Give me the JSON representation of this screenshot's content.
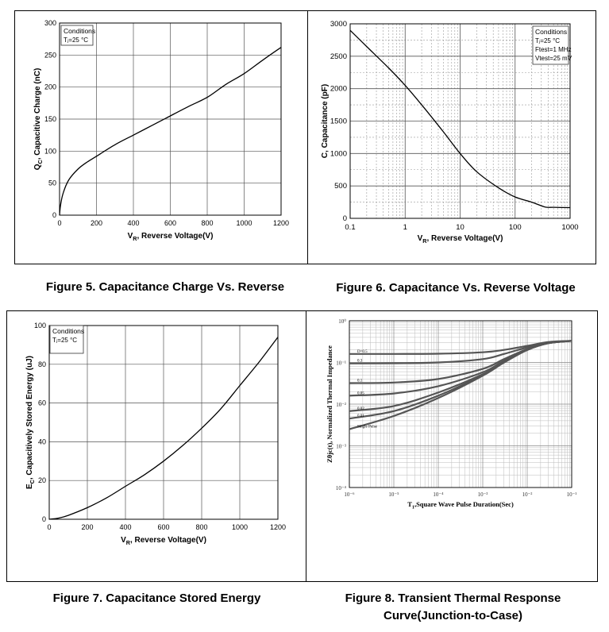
{
  "figures": {
    "fig5": {
      "caption": "Figure 5. Capacitance Charge Vs. Reverse",
      "conditions_title": "Conditions",
      "conditions_lines": [
        "Tⱼ=25 °C"
      ]
    },
    "fig6": {
      "caption": "Figure 6. Capacitance Vs. Reverse Voltage",
      "conditions_title": "Conditions",
      "conditions_lines": [
        "Tⱼ=25 °C",
        "Ftest=1 MHz",
        "Vtest=25 mV"
      ]
    },
    "fig7": {
      "caption": "Figure 7. Capacitance Stored Energy",
      "conditions_title": "Conditions",
      "conditions_lines": [
        "Tⱼ=25 °C"
      ]
    },
    "fig8": {
      "caption_line1": "Figure 8. Transient Thermal Response",
      "caption_line2": "Curve(Junction-to-Case)"
    }
  },
  "chart_data": [
    {
      "type": "line",
      "xlabel": "VR, Reverse Voltage(V)",
      "ylabel": "QC, Capacitive Charge (nC)",
      "xlim": [
        0,
        1200
      ],
      "ylim": [
        0,
        300
      ],
      "xticks": [
        0,
        200,
        400,
        600,
        800,
        1000,
        1200
      ],
      "yticks": [
        0,
        50,
        100,
        150,
        200,
        250,
        300
      ],
      "grid": true,
      "series": [
        {
          "x": [
            0,
            5,
            20,
            50,
            100,
            150,
            200,
            300,
            400,
            500,
            600,
            700,
            800,
            900,
            1000,
            1100,
            1200
          ],
          "y": [
            0,
            15,
            35,
            55,
            72,
            83,
            92,
            110,
            125,
            140,
            155,
            170,
            184,
            204,
            221,
            242,
            262
          ]
        }
      ]
    },
    {
      "type": "line",
      "xlabel": "VR, Reverse Voltage(V)",
      "ylabel": "C, Capacitance (pF)",
      "xscale": "log",
      "xlim": [
        0.1,
        1000
      ],
      "ylim": [
        0,
        3000
      ],
      "xticks": [
        0.1,
        1,
        10,
        100,
        1000
      ],
      "xtick_labels": [
        "0.1",
        "1",
        "10",
        "100",
        "1000"
      ],
      "yticks": [
        0,
        500,
        1000,
        1500,
        2000,
        2500,
        3000
      ],
      "grid": true,
      "series": [
        {
          "x": [
            0.1,
            0.2,
            0.5,
            1,
            2,
            5,
            10,
            20,
            50,
            100,
            200,
            350,
            500,
            1000
          ],
          "y": [
            2900,
            2650,
            2320,
            2050,
            1750,
            1330,
            1000,
            720,
            470,
            330,
            250,
            175,
            170,
            165
          ]
        }
      ]
    },
    {
      "type": "line",
      "xlabel": "VR, Reverse Voltage(V)",
      "ylabel": "EC, Capacitively Stored Energy (uJ)",
      "xlim": [
        0,
        1200
      ],
      "ylim": [
        0,
        100
      ],
      "xticks": [
        0,
        200,
        400,
        600,
        800,
        1000,
        1200
      ],
      "yticks": [
        0,
        20,
        40,
        60,
        80,
        100
      ],
      "grid": true,
      "series": [
        {
          "x": [
            0,
            50,
            100,
            200,
            300,
            400,
            500,
            600,
            700,
            800,
            900,
            1000,
            1100,
            1200
          ],
          "y": [
            0,
            0.6,
            2,
            6,
            11,
            17,
            23,
            30,
            38,
            47,
            57,
            69,
            81,
            94
          ]
        }
      ]
    },
    {
      "type": "line",
      "xlabel": "T1,Square Wave Pulse Duration(Sec)",
      "ylabel": "Zθjc(t), Normalized Thermal Impedance",
      "xscale": "log",
      "yscale": "log",
      "xlim": [
        1e-06,
        0.1
      ],
      "ylim": [
        0.0001,
        1
      ],
      "xtick_labels": [
        "10⁻⁶",
        "10⁻⁵",
        "10⁻⁴",
        "10⁻³",
        "10⁻²",
        "10⁻¹"
      ],
      "ytick_labels": [
        "10⁰",
        "10⁻¹",
        "10⁻²",
        "10⁻³",
        "10⁻⁴"
      ],
      "grid": true,
      "series": [
        {
          "name": "D=0.5",
          "x": [
            1e-06,
            1e-05,
            0.0001,
            0.001,
            0.003,
            0.01,
            0.03,
            0.1
          ],
          "y": [
            0.16,
            0.16,
            0.162,
            0.175,
            0.2,
            0.25,
            0.31,
            0.33
          ]
        },
        {
          "name": "0.3",
          "x": [
            1e-06,
            1e-05,
            0.0001,
            0.001,
            0.003,
            0.01,
            0.03,
            0.1
          ],
          "y": [
            0.095,
            0.096,
            0.1,
            0.12,
            0.16,
            0.23,
            0.3,
            0.33
          ]
        },
        {
          "name": "0.1",
          "x": [
            1e-06,
            1e-05,
            0.0001,
            0.001,
            0.003,
            0.01,
            0.03,
            0.1
          ],
          "y": [
            0.032,
            0.033,
            0.04,
            0.07,
            0.12,
            0.21,
            0.29,
            0.33
          ]
        },
        {
          "name": "0.05",
          "x": [
            1e-06,
            1e-05,
            0.0001,
            0.001,
            0.003,
            0.01,
            0.03,
            0.1
          ],
          "y": [
            0.016,
            0.018,
            0.027,
            0.058,
            0.11,
            0.2,
            0.29,
            0.33
          ]
        },
        {
          "name": "0.02",
          "x": [
            1e-06,
            1e-05,
            0.0001,
            0.001,
            0.003,
            0.01,
            0.03,
            0.1
          ],
          "y": [
            0.0068,
            0.009,
            0.019,
            0.052,
            0.1,
            0.2,
            0.29,
            0.33
          ]
        },
        {
          "name": "0.01",
          "x": [
            1e-06,
            1e-05,
            0.0001,
            0.001,
            0.003,
            0.01,
            0.03,
            0.1
          ],
          "y": [
            0.0045,
            0.0068,
            0.016,
            0.05,
            0.1,
            0.2,
            0.29,
            0.33
          ]
        },
        {
          "name": "Single Pulse",
          "x": [
            1e-06,
            1e-05,
            0.0001,
            0.001,
            0.003,
            0.01,
            0.03,
            0.1
          ],
          "y": [
            0.0025,
            0.0052,
            0.014,
            0.048,
            0.1,
            0.2,
            0.29,
            0.33
          ]
        }
      ]
    }
  ]
}
